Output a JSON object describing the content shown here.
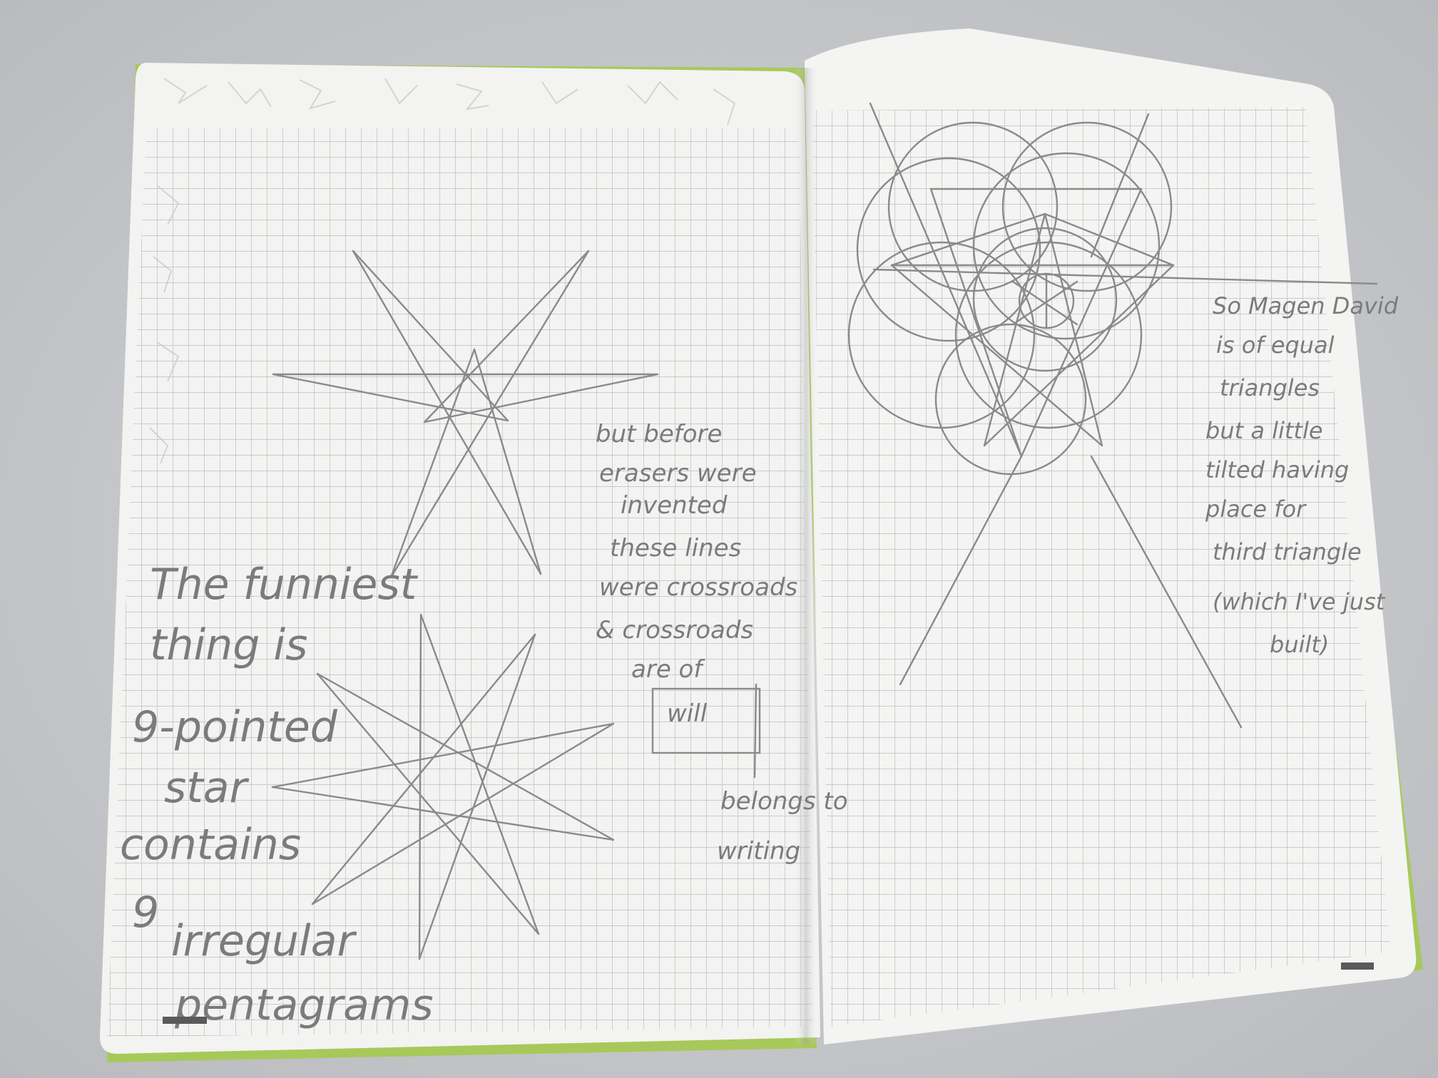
{
  "left_page": {
    "main_note": [
      "The funniest",
      "thing is",
      "9-pointed",
      "star",
      "contains",
      "9",
      "irregular",
      "pentagrams"
    ],
    "middle_note": [
      "but before",
      "erasers were",
      "invented",
      "these lines",
      "were crossroads",
      "& crossroads",
      "are of"
    ],
    "box_word": "will",
    "bottom_note": [
      "belongs to",
      "writing"
    ]
  },
  "right_page": {
    "note": [
      "So Magen David",
      "is of equal",
      "triangles",
      "but a little",
      "tilted having",
      "place for",
      "third triangle",
      "(which I've just",
      "built)"
    ]
  },
  "colors": {
    "background": "#c9cbcd",
    "paper": "#f3f3f1",
    "grid": "#b9bec6",
    "pencil": "#8a8a8a",
    "cover_edge": "#a7c95a"
  }
}
